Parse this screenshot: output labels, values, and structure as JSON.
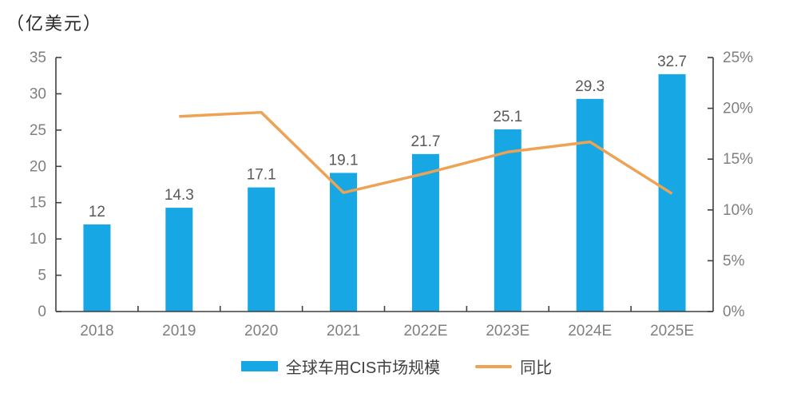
{
  "title_unit": "（亿美元）",
  "legend": {
    "bar_label": "全球车用CIS市场规模",
    "line_label": "同比"
  },
  "colors": {
    "bar": "#17a7e5",
    "line": "#eda254",
    "axis": "#404040",
    "tick_label": "#7f7f7f",
    "data_label": "#595959",
    "background": "#ffffff"
  },
  "chart_data": {
    "type": "bar",
    "title": "",
    "categories": [
      "2018",
      "2019",
      "2020",
      "2021",
      "2022E",
      "2023E",
      "2024E",
      "2025E"
    ],
    "series": [
      {
        "name": "全球车用CIS市场规模",
        "type": "bar",
        "axis": "left",
        "values": [
          12,
          14.3,
          17.1,
          19.1,
          21.7,
          25.1,
          29.3,
          32.7
        ],
        "labels": [
          "12",
          "14.3",
          "17.1",
          "19.1",
          "21.7",
          "25.1",
          "29.3",
          "32.7"
        ]
      },
      {
        "name": "同比",
        "type": "line",
        "axis": "right",
        "values_percent": [
          null,
          19.2,
          19.6,
          11.7,
          13.6,
          15.7,
          16.7,
          11.6
        ]
      }
    ],
    "left_axis": {
      "title": "（亿美元）",
      "min": 0,
      "max": 35,
      "ticks": [
        0,
        5,
        10,
        15,
        20,
        25,
        30,
        35
      ]
    },
    "right_axis": {
      "min": 0,
      "max": 25,
      "tick_values": [
        0,
        5,
        10,
        15,
        20,
        25
      ],
      "ticks": [
        "0%",
        "5%",
        "10%",
        "15%",
        "20%",
        "25%"
      ]
    },
    "grid": false,
    "legend_position": "bottom"
  }
}
